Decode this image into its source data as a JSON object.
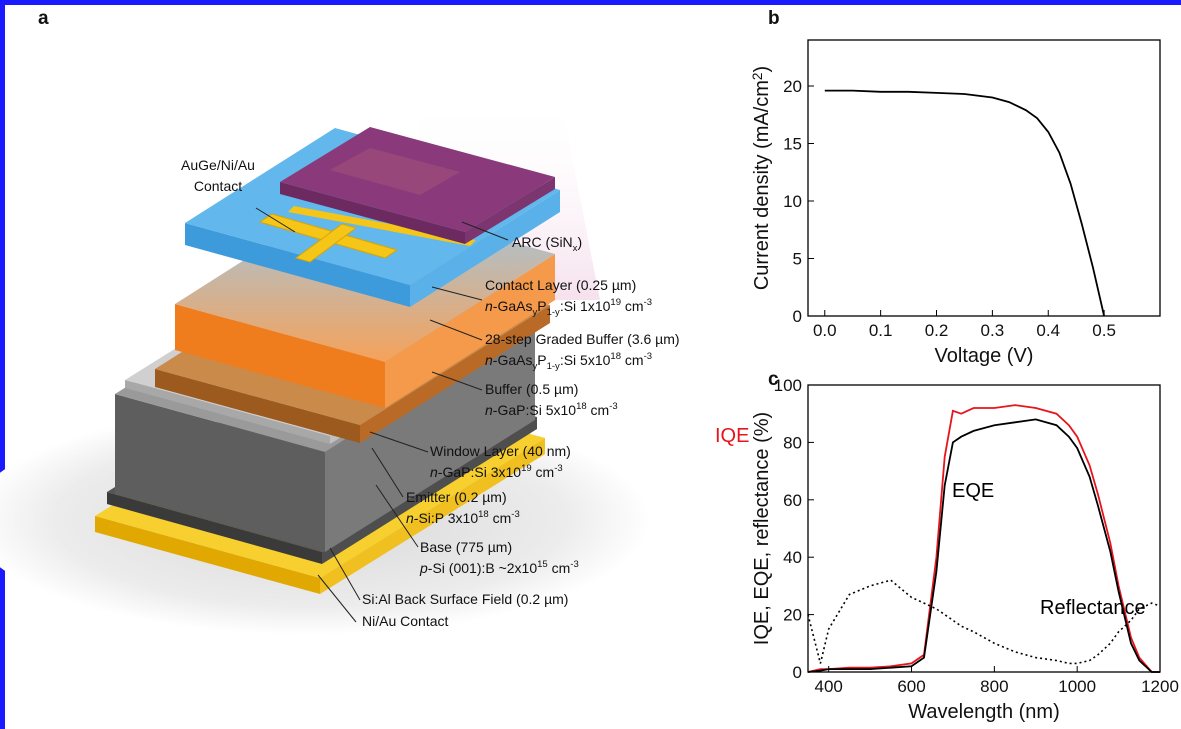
{
  "panel_labels": [
    "a",
    "b",
    "c"
  ],
  "diagram": {
    "labels": [
      {
        "lines": [
          [
            "AuGe/Ni/Au"
          ],
          [
            "Contact"
          ]
        ]
      },
      {
        "lines": [
          [
            "ARC (SiN",
            {
              "sub": "x"
            },
            ")"
          ]
        ]
      },
      {
        "lines": [
          [
            "Contact Layer (0.25 µm)"
          ],
          [
            {
              "i": "n"
            },
            "-GaAs",
            {
              "sub": "y"
            },
            "P",
            {
              "sub": "1-y"
            },
            ":Si 1x10",
            {
              "sup": "19"
            },
            " cm",
            {
              "sup": "-3"
            }
          ]
        ]
      },
      {
        "lines": [
          [
            "28-step Graded Buffer (3.6 µm)"
          ],
          [
            {
              "i": "n"
            },
            "-GaAs",
            {
              "sub": "y"
            },
            "P",
            {
              "sub": "1-y"
            },
            ":Si 5x10",
            {
              "sup": "18"
            },
            " cm",
            {
              "sup": "-3"
            }
          ]
        ]
      },
      {
        "lines": [
          [
            "Buffer (0.5 µm)"
          ],
          [
            {
              "i": "n"
            },
            "-GaP:Si 5x10",
            {
              "sup": "18"
            },
            " cm",
            {
              "sup": "-3"
            }
          ]
        ]
      },
      {
        "lines": [
          [
            "Window Layer (40 nm)"
          ],
          [
            {
              "i": "n"
            },
            "-GaP:Si 3x10",
            {
              "sup": "19"
            },
            " cm",
            {
              "sup": "-3"
            }
          ]
        ]
      },
      {
        "lines": [
          [
            "Emitter (0.2 µm)"
          ],
          [
            {
              "i": "n"
            },
            "-Si:P 3x10",
            {
              "sup": "18"
            },
            " cm",
            {
              "sup": "-3"
            }
          ]
        ]
      },
      {
        "lines": [
          [
            "Base (775 µm)"
          ],
          [
            {
              "i": "p"
            },
            "-Si (001):B ~2x10",
            {
              "sup": "15"
            },
            " cm",
            {
              "sup": "-3"
            }
          ]
        ]
      },
      {
        "lines": [
          [
            "Si:Al Back Surface Field (0.2 µm)"
          ]
        ]
      },
      {
        "lines": [
          [
            "Ni/Au Contact"
          ]
        ]
      }
    ]
  },
  "chart_data": [
    {
      "type": "line",
      "xlabel": "Voltage (V)",
      "ylabel": [
        "Current density (mA/cm",
        {
          "sup": "2"
        },
        ")"
      ],
      "x": [
        0,
        0.05,
        0.1,
        0.15,
        0.2,
        0.25,
        0.3,
        0.33,
        0.36,
        0.38,
        0.4,
        0.42,
        0.44,
        0.46,
        0.48,
        0.5
      ],
      "values": [
        19.6,
        19.6,
        19.5,
        19.5,
        19.4,
        19.3,
        19.0,
        18.6,
        17.9,
        17.2,
        16.0,
        14.2,
        11.5,
        8.0,
        4.2,
        0
      ],
      "color": "#000000",
      "xlim": [
        -0.03,
        0.6
      ],
      "ylim": [
        0,
        24
      ],
      "xticks": [
        {
          "value": 0,
          "label": "0.0"
        },
        0.1,
        0.2,
        0.3,
        0.4,
        0.5
      ],
      "yticks": [
        0,
        5,
        10,
        15,
        20
      ]
    },
    {
      "type": "line",
      "xlabel": "Wavelength (nm)",
      "ylabel": [
        "IQE, EQE, reflectance (%)"
      ],
      "x": [
        350,
        380,
        400,
        450,
        500,
        550,
        600,
        630,
        660,
        680,
        700,
        720,
        750,
        800,
        850,
        900,
        950,
        980,
        1000,
        1030,
        1050,
        1080,
        1100,
        1130,
        1150,
        1180,
        1200
      ],
      "series": [
        {
          "name": "IQE",
          "color": "#e8141c",
          "dash": "solid",
          "values": [
            0,
            1,
            1,
            1.5,
            1.5,
            2,
            3,
            6,
            40,
            75,
            91,
            90,
            92,
            92,
            93,
            92,
            90,
            86,
            82,
            72,
            62,
            45,
            30,
            12,
            5,
            0,
            0
          ]
        },
        {
          "name": "EQE",
          "color": "#000000",
          "dash": "solid",
          "values": [
            0,
            0.5,
            1,
            1,
            1,
            1.5,
            2,
            5,
            35,
            65,
            80,
            82,
            84,
            86,
            87,
            88,
            86,
            82,
            78,
            68,
            58,
            42,
            28,
            10,
            4,
            0,
            0
          ]
        },
        {
          "name": "Reflectance",
          "color": "#000000",
          "dash": "dotted",
          "values": [
            20,
            3,
            15,
            27,
            30,
            32,
            26,
            24,
            22,
            20,
            18,
            16,
            14,
            10,
            7,
            5,
            4,
            3,
            3,
            4,
            6,
            10,
            14,
            18,
            22,
            24,
            23
          ]
        }
      ],
      "xlim": [
        350,
        1200
      ],
      "ylim": [
        0,
        100
      ],
      "xticks": [
        400,
        600,
        800,
        1000,
        1200
      ],
      "yticks": [
        0,
        20,
        40,
        60,
        80,
        100
      ]
    }
  ]
}
